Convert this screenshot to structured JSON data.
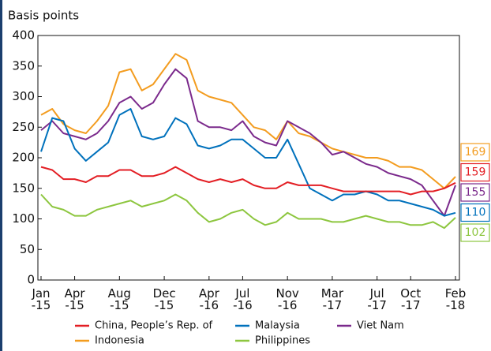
{
  "chart_data": {
    "type": "line",
    "ylabel": "Basis points",
    "categories": [
      "Jan\n-15",
      null,
      null,
      "Apr\n-15",
      null,
      null,
      null,
      "Aug\n-15",
      null,
      null,
      null,
      "Dec\n-15",
      null,
      null,
      null,
      "Apr\n-16",
      null,
      null,
      "Jul\n-16",
      null,
      null,
      null,
      "Nov\n-16",
      null,
      null,
      null,
      "Mar\n-17",
      null,
      null,
      null,
      "Jul\n-17",
      null,
      null,
      "Oct\n-17",
      null,
      null,
      null,
      "Feb\n-18"
    ],
    "ylim": [
      0,
      400
    ],
    "yticks": [
      0,
      50,
      100,
      150,
      200,
      250,
      300,
      350,
      400
    ],
    "grid": false,
    "series": [
      {
        "name": "China, People’s Rep. of",
        "color": "#e31e24",
        "values": [
          185,
          180,
          165,
          165,
          160,
          170,
          170,
          180,
          180,
          170,
          170,
          175,
          185,
          175,
          165,
          160,
          165,
          160,
          165,
          155,
          150,
          150,
          160,
          155,
          155,
          155,
          150,
          145,
          145,
          145,
          145,
          145,
          145,
          140,
          145,
          145,
          150,
          159
        ]
      },
      {
        "name": "Malaysia",
        "color": "#0071bc",
        "values": [
          210,
          265,
          260,
          215,
          195,
          210,
          225,
          270,
          280,
          235,
          230,
          235,
          265,
          255,
          220,
          215,
          220,
          230,
          230,
          215,
          200,
          200,
          230,
          190,
          150,
          140,
          130,
          140,
          140,
          145,
          140,
          130,
          130,
          125,
          120,
          115,
          105,
          110
        ]
      },
      {
        "name": "Viet Nam",
        "color": "#7b2a8c",
        "values": [
          245,
          260,
          240,
          235,
          230,
          240,
          260,
          290,
          300,
          280,
          290,
          320,
          345,
          330,
          260,
          250,
          250,
          245,
          260,
          235,
          225,
          220,
          260,
          250,
          240,
          225,
          205,
          210,
          200,
          190,
          185,
          175,
          170,
          165,
          155,
          130,
          105,
          155
        ]
      },
      {
        "name": "Indonesia",
        "color": "#f39c1f",
        "values": [
          270,
          280,
          255,
          245,
          240,
          260,
          285,
          340,
          345,
          310,
          320,
          345,
          370,
          360,
          310,
          300,
          295,
          290,
          270,
          250,
          245,
          230,
          260,
          240,
          235,
          225,
          215,
          210,
          205,
          200,
          200,
          195,
          185,
          185,
          180,
          165,
          150,
          169
        ]
      },
      {
        "name": "Philippines",
        "color": "#8dc63f",
        "values": [
          140,
          120,
          115,
          105,
          105,
          115,
          120,
          125,
          130,
          120,
          125,
          130,
          140,
          130,
          110,
          95,
          100,
          110,
          115,
          100,
          90,
          95,
          110,
          100,
          100,
          100,
          95,
          95,
          100,
          105,
          100,
          95,
          95,
          90,
          90,
          95,
          85,
          102
        ]
      }
    ]
  }
}
